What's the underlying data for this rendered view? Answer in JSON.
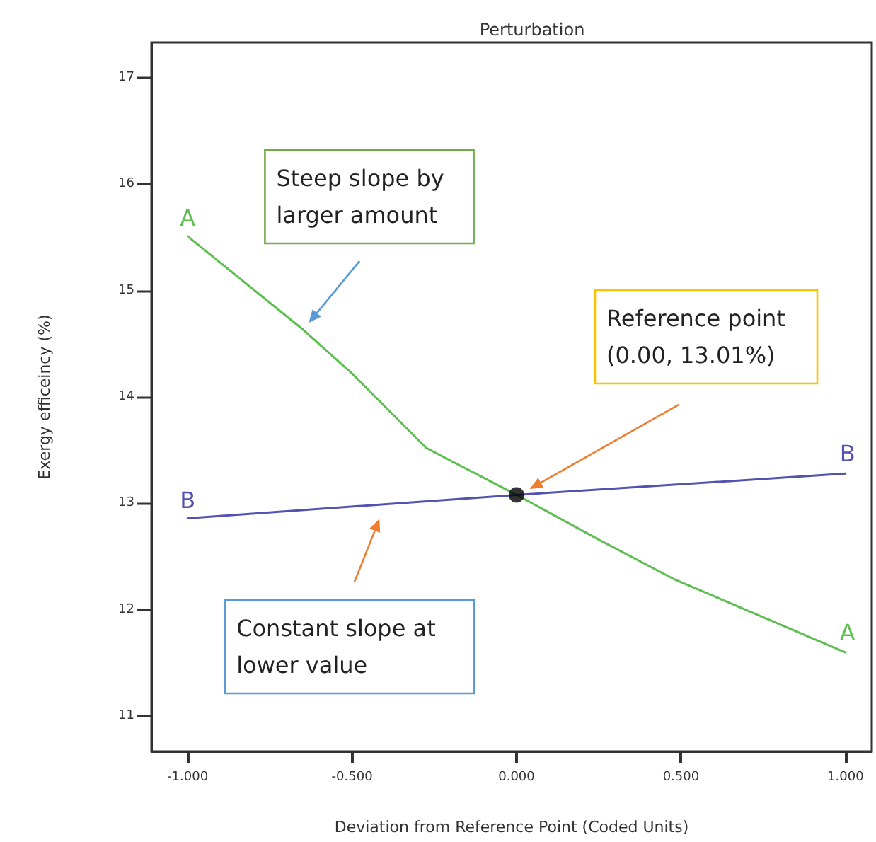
{
  "chart_data": {
    "type": "line",
    "title": "Perturbation",
    "xlabel": "Deviation from Reference Point (Coded Units)",
    "ylabel": "Exergy efficeincy (%)",
    "xlim": [
      -1.11,
      1.08
    ],
    "ylim": [
      10.67,
      17.33
    ],
    "xticks": [
      {
        "value": -1,
        "label": "-1.000"
      },
      {
        "value": -0.5,
        "label": "-0.500"
      },
      {
        "value": 0,
        "label": "0.000"
      },
      {
        "value": 0.5,
        "label": "0.500"
      },
      {
        "value": 1,
        "label": "1.000"
      }
    ],
    "yticks": [
      11,
      12,
      13,
      14,
      15,
      16,
      17
    ],
    "series": [
      {
        "name": "A",
        "color": "#5cbf4f",
        "x": [
          -1,
          -0.652,
          -0.5,
          -0.274,
          0,
          0.25,
          0.478,
          0.75,
          1
        ],
        "values": [
          15.51,
          14.64,
          14.22,
          13.52,
          13.08,
          12.66,
          12.29,
          11.93,
          11.6
        ]
      },
      {
        "name": "B",
        "color": "#5252b0",
        "x": [
          -1,
          0,
          1
        ],
        "values": [
          12.86,
          13.08,
          13.28
        ]
      },
      {
        "type": "scatter",
        "color": "#000000",
        "x": [
          0
        ],
        "values": [
          13.08
        ]
      }
    ],
    "annotations": [
      "Steep slope by\nlarger amount",
      "Reference point\n(0.00, 13.01%)",
      "Constant slope at\nlower value"
    ],
    "grid": false,
    "legend": false,
    "line_style": "solid"
  }
}
